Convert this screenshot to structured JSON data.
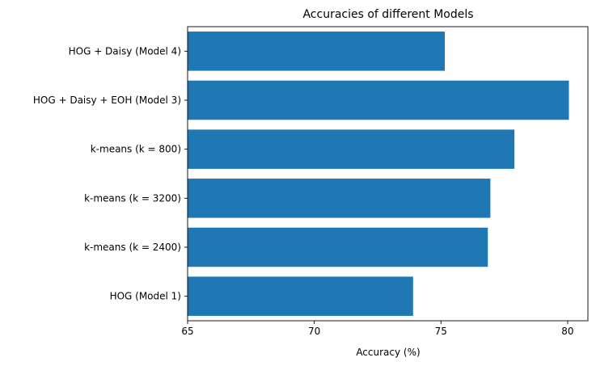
{
  "chart_data": {
    "type": "bar",
    "orientation": "horizontal",
    "title": "Accuracies of different Models",
    "xlabel": "Accuracy (%)",
    "ylabel": "",
    "xlim": [
      65,
      80.8
    ],
    "xticks": [
      65,
      70,
      75,
      80
    ],
    "categories": [
      "HOG (Model 1)",
      "k-means (k = 2400)",
      "k-means (k = 3200)",
      "k-means (k = 800)",
      "HOG + Daisy + EOH (Model 3)",
      "HOG + Daisy (Model 4)"
    ],
    "values": [
      73.9,
      76.85,
      76.95,
      77.9,
      80.05,
      75.15
    ],
    "bar_color": "#1f77b4",
    "grid": false,
    "legend": "none"
  }
}
